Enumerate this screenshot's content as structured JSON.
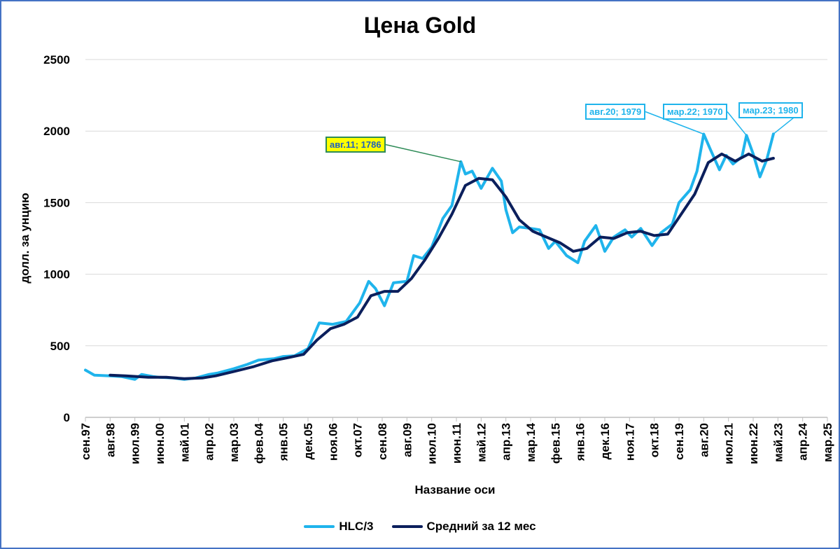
{
  "chart_data": {
    "type": "line",
    "title": "Цена Gold",
    "xlabel": "Название оси",
    "ylabel": "долл. за унцию",
    "ylim": [
      0,
      2500
    ],
    "yticks": [
      0,
      500,
      1000,
      1500,
      2000,
      2500
    ],
    "grid": true,
    "legend_position": "bottom",
    "x_tick_labels": [
      "сен.97",
      "авг.98",
      "июл.99",
      "июн.00",
      "май.01",
      "апр.02",
      "мар.03",
      "фев.04",
      "янв.05",
      "дек.05",
      "ноя.06",
      "окт.07",
      "сен.08",
      "авг.09",
      "июл.10",
      "июн.11",
      "май.12",
      "апр.13",
      "мар.14",
      "фев.15",
      "янв.16",
      "дек.16",
      "ноя.17",
      "окт.18",
      "сен.19",
      "авг.20",
      "июл.21",
      "июн.22",
      "май.23",
      "апр.24",
      "мар.25"
    ],
    "series": [
      {
        "name": "HLC/3",
        "color": "#1FB4EC",
        "points": [
          [
            "1997-09",
            330
          ],
          [
            "1998-01",
            295
          ],
          [
            "1998-08",
            290
          ],
          [
            "1999-01",
            285
          ],
          [
            "1999-07",
            265
          ],
          [
            "1999-10",
            300
          ],
          [
            "2000-03",
            285
          ],
          [
            "2000-06",
            280
          ],
          [
            "2000-12",
            275
          ],
          [
            "2001-05",
            265
          ],
          [
            "2001-10",
            275
          ],
          [
            "2002-04",
            300
          ],
          [
            "2002-08",
            310
          ],
          [
            "2003-03",
            340
          ],
          [
            "2003-09",
            370
          ],
          [
            "2004-02",
            400
          ],
          [
            "2004-09",
            410
          ],
          [
            "2005-01",
            425
          ],
          [
            "2005-06",
            430
          ],
          [
            "2005-12",
            480
          ],
          [
            "2006-05",
            660
          ],
          [
            "2006-11",
            650
          ],
          [
            "2007-05",
            670
          ],
          [
            "2007-11",
            800
          ],
          [
            "2008-03",
            950
          ],
          [
            "2008-06",
            900
          ],
          [
            "2008-10",
            780
          ],
          [
            "2009-02",
            940
          ],
          [
            "2009-08",
            950
          ],
          [
            "2009-11",
            1130
          ],
          [
            "2010-03",
            1110
          ],
          [
            "2010-07",
            1190
          ],
          [
            "2010-12",
            1390
          ],
          [
            "2011-04",
            1480
          ],
          [
            "2011-08",
            1786
          ],
          [
            "2011-10",
            1700
          ],
          [
            "2012-01",
            1720
          ],
          [
            "2012-05",
            1600
          ],
          [
            "2012-10",
            1740
          ],
          [
            "2013-02",
            1650
          ],
          [
            "2013-04",
            1450
          ],
          [
            "2013-07",
            1290
          ],
          [
            "2013-10",
            1330
          ],
          [
            "2014-03",
            1320
          ],
          [
            "2014-07",
            1310
          ],
          [
            "2014-11",
            1180
          ],
          [
            "2015-02",
            1230
          ],
          [
            "2015-07",
            1130
          ],
          [
            "2015-12",
            1080
          ],
          [
            "2016-03",
            1230
          ],
          [
            "2016-08",
            1340
          ],
          [
            "2016-12",
            1160
          ],
          [
            "2017-04",
            1260
          ],
          [
            "2017-09",
            1310
          ],
          [
            "2017-12",
            1260
          ],
          [
            "2018-04",
            1320
          ],
          [
            "2018-09",
            1200
          ],
          [
            "2019-01",
            1290
          ],
          [
            "2019-06",
            1350
          ],
          [
            "2019-09",
            1500
          ],
          [
            "2020-02",
            1590
          ],
          [
            "2020-05",
            1720
          ],
          [
            "2020-08",
            1979
          ],
          [
            "2020-11",
            1870
          ],
          [
            "2021-03",
            1730
          ],
          [
            "2021-06",
            1830
          ],
          [
            "2021-09",
            1770
          ],
          [
            "2022-01",
            1820
          ],
          [
            "2022-03",
            1970
          ],
          [
            "2022-06",
            1840
          ],
          [
            "2022-09",
            1680
          ],
          [
            "2022-12",
            1800
          ],
          [
            "2023-03",
            1980
          ]
        ]
      },
      {
        "name": "Средний за 12 мес",
        "color": "#0B1F5C",
        "points": [
          [
            "1998-08",
            295
          ],
          [
            "1999-03",
            290
          ],
          [
            "2000-01",
            280
          ],
          [
            "2000-09",
            280
          ],
          [
            "2001-05",
            270
          ],
          [
            "2002-01",
            275
          ],
          [
            "2002-07",
            290
          ],
          [
            "2003-03",
            320
          ],
          [
            "2003-12",
            355
          ],
          [
            "2004-08",
            395
          ],
          [
            "2005-04",
            420
          ],
          [
            "2005-10",
            440
          ],
          [
            "2006-04",
            540
          ],
          [
            "2006-10",
            620
          ],
          [
            "2007-04",
            650
          ],
          [
            "2007-10",
            700
          ],
          [
            "2008-04",
            850
          ],
          [
            "2008-10",
            880
          ],
          [
            "2009-04",
            880
          ],
          [
            "2009-10",
            970
          ],
          [
            "2010-04",
            1100
          ],
          [
            "2010-10",
            1250
          ],
          [
            "2011-04",
            1420
          ],
          [
            "2011-10",
            1620
          ],
          [
            "2012-04",
            1670
          ],
          [
            "2012-10",
            1660
          ],
          [
            "2013-04",
            1540
          ],
          [
            "2013-10",
            1380
          ],
          [
            "2014-04",
            1300
          ],
          [
            "2014-10",
            1260
          ],
          [
            "2015-04",
            1220
          ],
          [
            "2015-10",
            1160
          ],
          [
            "2016-04",
            1180
          ],
          [
            "2016-10",
            1260
          ],
          [
            "2017-04",
            1250
          ],
          [
            "2017-10",
            1290
          ],
          [
            "2018-04",
            1300
          ],
          [
            "2018-10",
            1270
          ],
          [
            "2019-04",
            1280
          ],
          [
            "2019-10",
            1420
          ],
          [
            "2020-04",
            1560
          ],
          [
            "2020-10",
            1780
          ],
          [
            "2021-04",
            1840
          ],
          [
            "2021-10",
            1790
          ],
          [
            "2022-04",
            1840
          ],
          [
            "2022-10",
            1790
          ],
          [
            "2023-03",
            1810
          ]
        ]
      }
    ],
    "annotations": [
      {
        "label": "авг.11; 1786",
        "x": "2011-08",
        "y": 1786,
        "border": "#2E8B57",
        "bg": "#FFFF00",
        "fg": "#1F5FBF"
      },
      {
        "label": "авг.20; 1979",
        "x": "2020-08",
        "y": 1979,
        "border": "#1FB4EC",
        "bg": "#FFFFFF",
        "fg": "#1FB4EC"
      },
      {
        "label": "мар.22; 1970",
        "x": "2022-03",
        "y": 1970,
        "border": "#1FB4EC",
        "bg": "#FFFFFF",
        "fg": "#1FB4EC"
      },
      {
        "label": "мар.23; 1980",
        "x": "2023-03",
        "y": 1980,
        "border": "#1FB4EC",
        "bg": "#FFFFFF",
        "fg": "#1FB4EC"
      }
    ]
  }
}
